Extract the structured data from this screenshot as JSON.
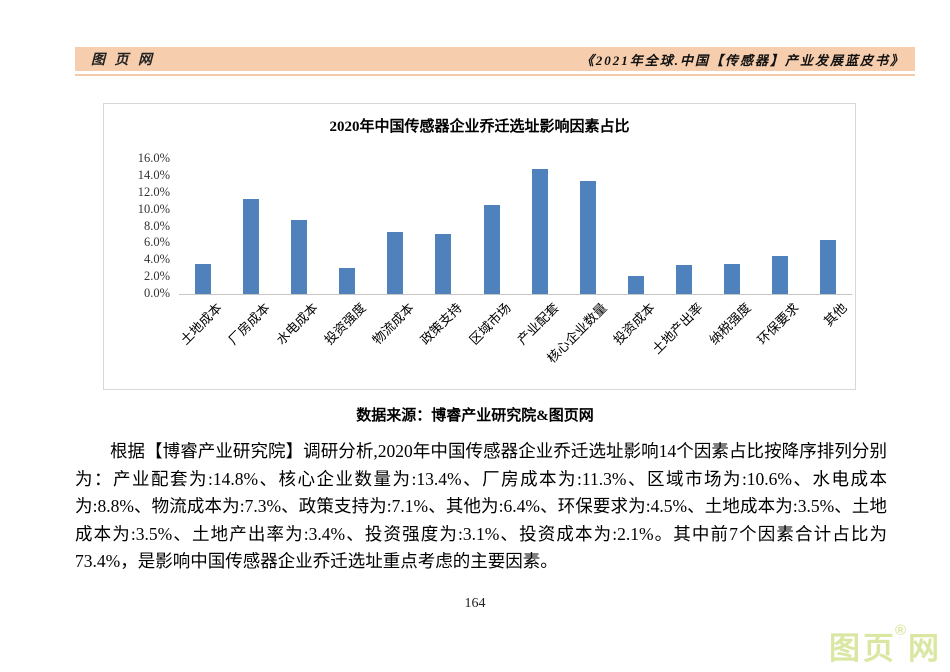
{
  "header": {
    "site_name": "图 页 网",
    "book_title": "《2021年全球.中国【传感器】产业发展蓝皮书》",
    "band_color": "#F6CDAD"
  },
  "chart_data": {
    "type": "bar",
    "title": "2020年中国传感器企业乔迁选址影响因素占比",
    "categories": [
      "土地成本",
      "厂房成本",
      "水电成本",
      "投资强度",
      "物流成本",
      "政策支持",
      "区域市场",
      "产业配套",
      "核心企业数量",
      "投资成本",
      "土地产出率",
      "纳税强度",
      "环保要求",
      "其他"
    ],
    "values": [
      3.5,
      11.3,
      8.8,
      3.1,
      7.3,
      7.1,
      10.6,
      14.8,
      13.4,
      2.1,
      3.4,
      3.5,
      4.5,
      6.4
    ],
    "xlabel": "",
    "ylabel": "",
    "ylim": [
      0,
      16
    ],
    "ytick_step": 2,
    "ytick_labels": [
      "16.0%",
      "14.0%",
      "12.0%",
      "10.0%",
      "8.0%",
      "6.0%",
      "4.0%",
      "2.0%",
      "0.0%"
    ],
    "bar_color": "#4F81BD",
    "grid": false,
    "legend": false
  },
  "source_line": "数据来源：博睿产业研究院&图页网",
  "paragraph": "根据【博睿产业研究院】调研分析,2020年中国传感器企业乔迁选址影响14个因素占比按降序排列分别为：产业配套为:14.8%、核心企业数量为:13.4%、厂房成本为:11.3%、区域市场为:10.6%、水电成本为:8.8%、物流成本为:7.3%、政策支持为:7.1%、其他为:6.4%、环保要求为:4.5%、土地成本为:3.5%、土地成本为:3.5%、土地产出率为:3.4%、投资强度为:3.1%、投资成本为:2.1%。其中前7个因素合计占比为73.4%，是影响中国传感器企业乔迁选址重点考虑的主要因素。",
  "page_number": "164",
  "watermark": {
    "text_left": "图页",
    "registered": "®",
    "text_right": "网",
    "color": "#D9E7A2"
  }
}
